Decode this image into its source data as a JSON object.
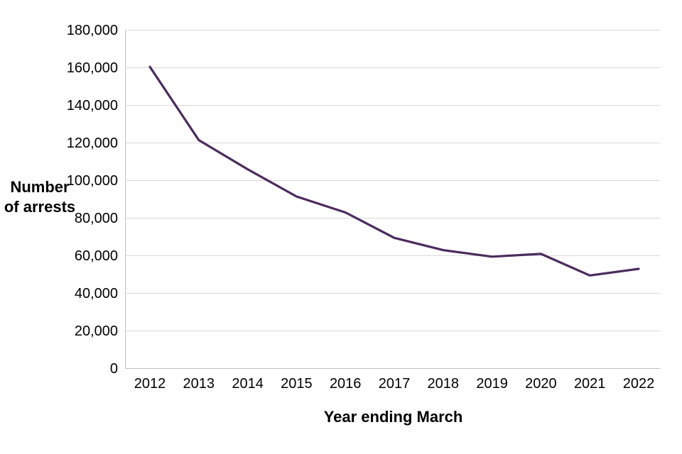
{
  "chart_data": {
    "type": "line",
    "title": "",
    "xlabel": "Year ending March",
    "ylabel": "Number of arrests",
    "ylabel_lines": [
      "Number",
      "of arrests"
    ],
    "categories": [
      "2012",
      "2013",
      "2014",
      "2015",
      "2016",
      "2017",
      "2018",
      "2019",
      "2020",
      "2021",
      "2022"
    ],
    "series": [
      {
        "name": "Number of arrests",
        "values": [
          160500,
          121500,
          106000,
          91500,
          83000,
          69500,
          63000,
          59500,
          61000,
          49500,
          53000
        ]
      }
    ],
    "ylim": [
      0,
      180000
    ],
    "ytick_interval": 20000,
    "ytick_labels": [
      "0",
      "20,000",
      "40,000",
      "60,000",
      "80,000",
      "100,000",
      "120,000",
      "140,000",
      "160,000",
      "180,000"
    ],
    "grid": true,
    "legend": false,
    "colors": {
      "line": "#4b2a5e",
      "gridline": "#d9d9d9",
      "axis": "#bfbfbf",
      "text": "#000000"
    }
  }
}
